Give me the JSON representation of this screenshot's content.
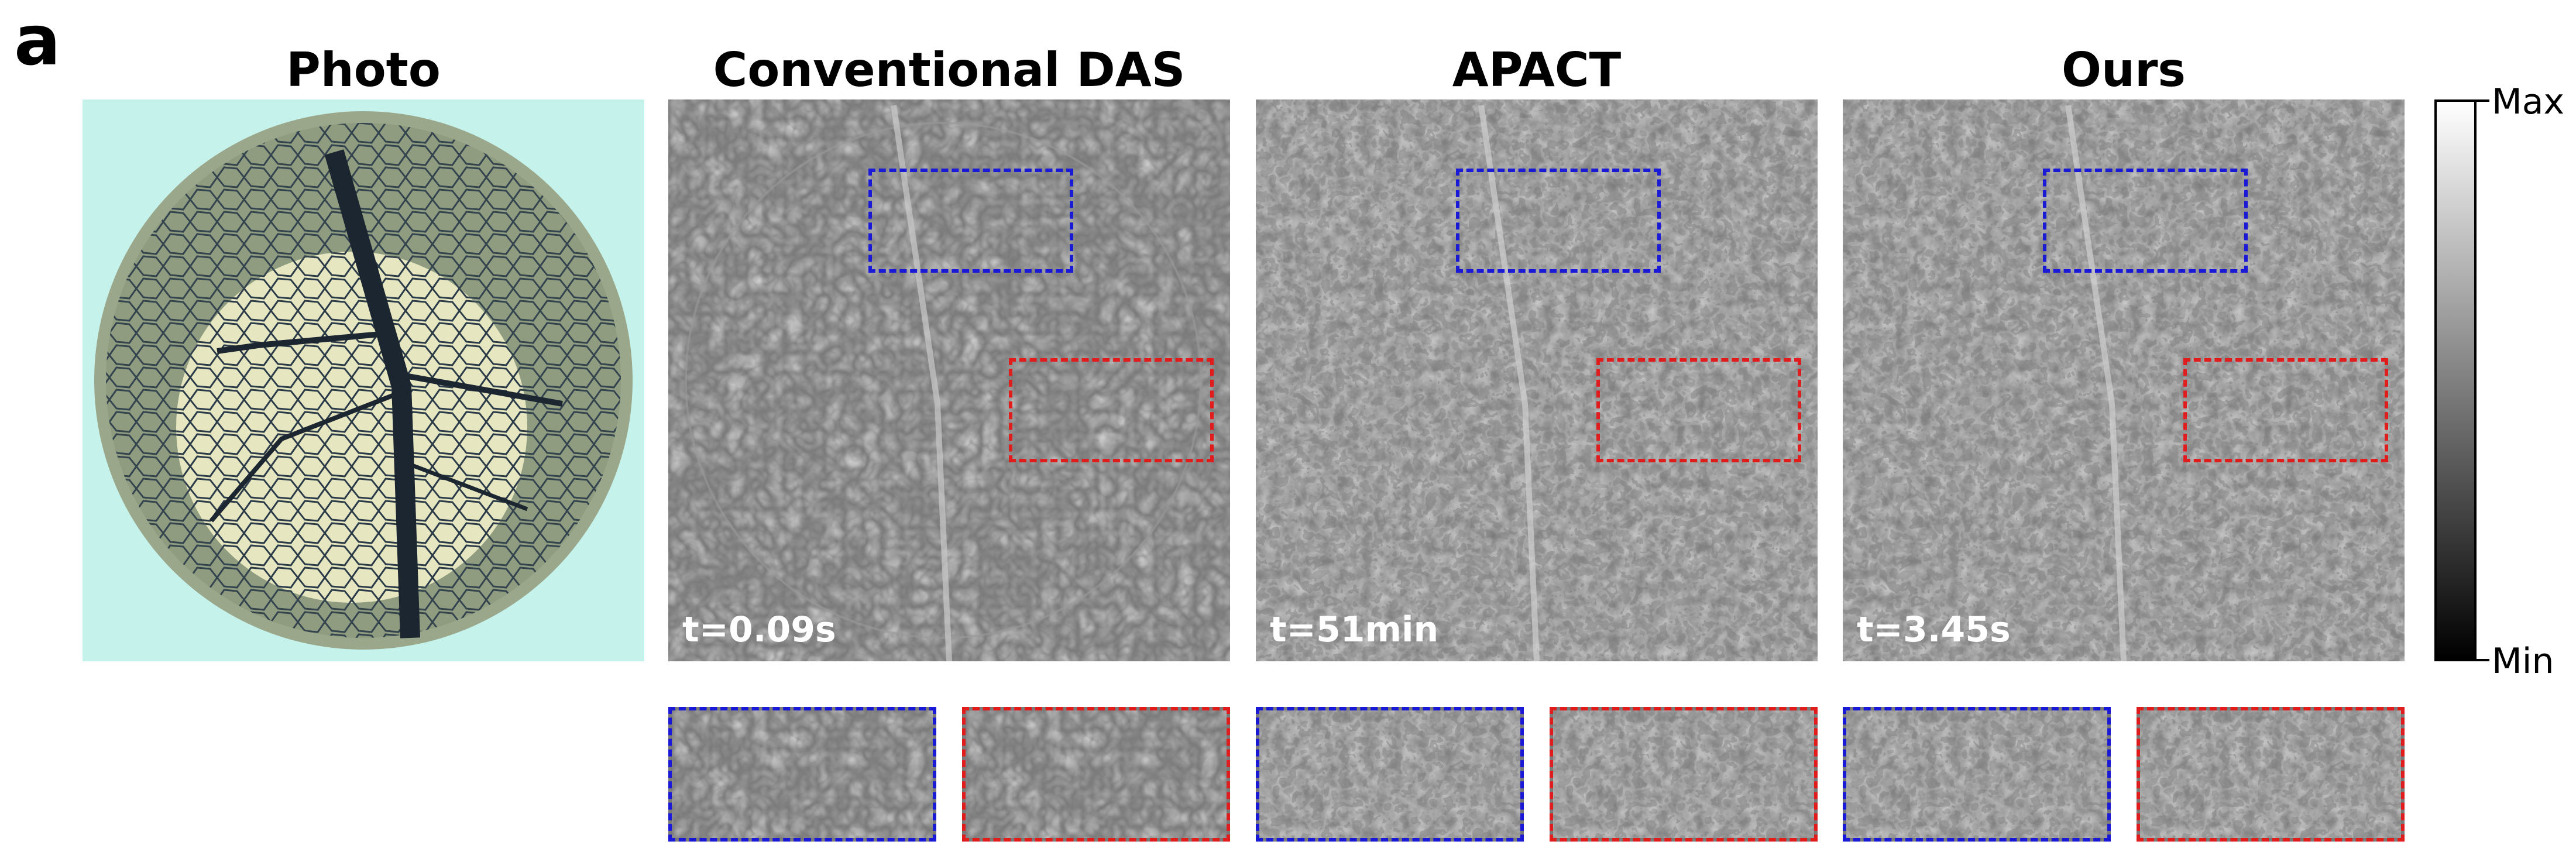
{
  "panel_label": "a",
  "columns": [
    {
      "id": "photo",
      "title": "Photo",
      "time": ""
    },
    {
      "id": "das",
      "title": "Conventional DAS",
      "time": "t=0.09s"
    },
    {
      "id": "apact",
      "title": "APACT",
      "time": "t=51min"
    },
    {
      "id": "ours",
      "title": "Ours",
      "time": "t=3.45s"
    }
  ],
  "colorbar": {
    "max_label": "Max",
    "min_label": "Min"
  },
  "colors": {
    "blue_roi": "#1a1ad6",
    "red_roi": "#e01c1c"
  }
}
